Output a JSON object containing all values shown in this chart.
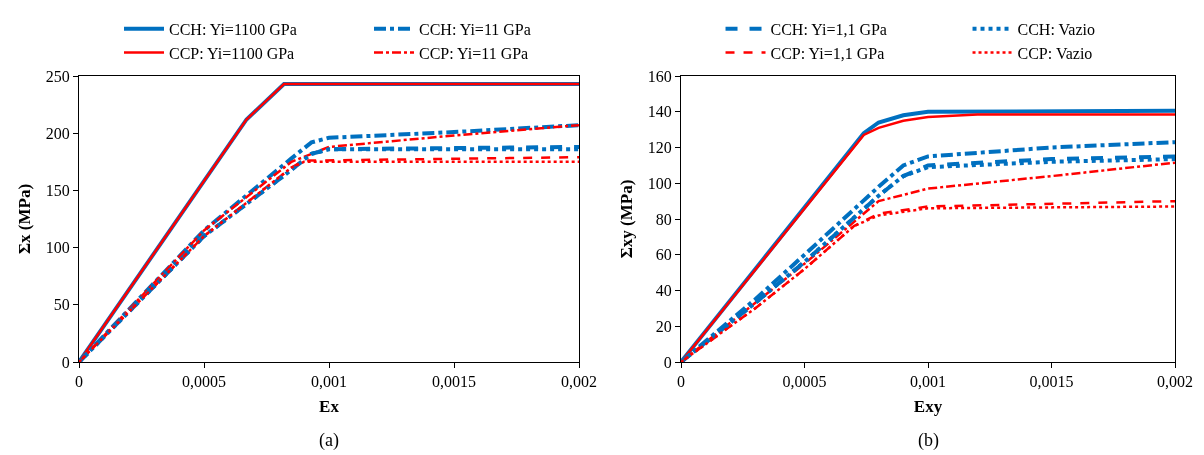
{
  "chart_data": [
    {
      "type": "line",
      "title": "(a)",
      "xlabel": "Ex",
      "ylabel": "Σx (MPa)",
      "legend": "top",
      "grid": false,
      "marker": "none",
      "xlim": [
        0,
        0.002
      ],
      "xticks": [
        0,
        {
          "value": 0.0005,
          "label": "0,0005"
        },
        {
          "value": 0.001,
          "label": "0,001"
        },
        {
          "value": 0.0015,
          "label": "0,0015"
        },
        {
          "value": 0.002,
          "label": "0,002"
        }
      ],
      "ylim": [
        0,
        250
      ],
      "yticks": [
        0,
        50,
        100,
        150,
        200,
        250
      ],
      "series": [
        {
          "name": "CCH: Yi=1100 GPa",
          "color": "#0070c0",
          "line_style": "solid",
          "x": [
            0,
            0.00067,
            0.00082,
            0.002
          ],
          "values": [
            0,
            212,
            243,
            243
          ]
        },
        {
          "name": "CCP: Yi=1100 GPa",
          "color": "#ff0000",
          "line_style": "solid",
          "x": [
            0,
            0.00067,
            0.00082,
            0.002
          ],
          "values": [
            0,
            212,
            243,
            243
          ]
        },
        {
          "name": "CCH: Yi=11 GPa",
          "color": "#0070c0",
          "line_style": "dashdot",
          "x": [
            0,
            0.0005,
            0.00085,
            0.00093,
            0.001,
            0.0015,
            0.002
          ],
          "values": [
            0,
            115,
            178,
            192,
            196,
            201,
            207
          ]
        },
        {
          "name": "CCP: Yi=11 GPa",
          "color": "#ff0000",
          "line_style": "dashdot",
          "x": [
            0,
            0.0005,
            0.00085,
            0.001,
            0.0015,
            0.002
          ],
          "values": [
            0,
            115,
            175,
            188,
            198,
            207
          ]
        },
        {
          "color": "#0070c0",
          "line_style": "dashed",
          "x": [
            0,
            0.0005,
            0.00085,
            0.00093,
            0.001,
            0.002
          ],
          "values": [
            0,
            110,
            168,
            182,
            186,
            188
          ]
        },
        {
          "color": "#ff0000",
          "line_style": "dashed",
          "x": [
            0,
            0.0005,
            0.00085,
            0.0009,
            0.002
          ],
          "values": [
            0,
            110,
            170,
            176,
            179
          ]
        },
        {
          "color": "#0070c0",
          "line_style": "dotted",
          "x": [
            0,
            0.0005,
            0.00085,
            0.00093,
            0.001,
            0.002
          ],
          "values": [
            0,
            110,
            168,
            182,
            186,
            186
          ]
        },
        {
          "color": "#ff0000",
          "line_style": "dotted",
          "x": [
            0,
            0.0005,
            0.00085,
            0.0009,
            0.002
          ],
          "values": [
            0,
            110,
            170,
            175,
            175
          ]
        }
      ]
    },
    {
      "type": "line",
      "title": "(b)",
      "xlabel": "Exy",
      "ylabel": "Σxy (MPa)",
      "legend": "top",
      "grid": false,
      "marker": "none",
      "xlim": [
        0,
        0.002
      ],
      "xticks": [
        0,
        {
          "value": 0.0005,
          "label": "0,0005"
        },
        {
          "value": 0.001,
          "label": "0,001"
        },
        {
          "value": 0.0015,
          "label": "0,0015"
        },
        {
          "value": 0.002,
          "label": "0,002"
        }
      ],
      "ylim": [
        0,
        160
      ],
      "yticks": [
        0,
        20,
        40,
        60,
        80,
        100,
        120,
        140,
        160
      ],
      "series": [
        {
          "color": "#0070c0",
          "line_style": "solid",
          "x": [
            0,
            0.00074,
            0.0008,
            0.0009,
            0.001,
            0.002
          ],
          "values": [
            0,
            128,
            134,
            138,
            140,
            140.5
          ]
        },
        {
          "color": "#ff0000",
          "line_style": "solid",
          "x": [
            0,
            0.00074,
            0.0008,
            0.0009,
            0.001,
            0.0012,
            0.002
          ],
          "values": [
            0,
            127,
            131,
            135,
            137,
            138.5,
            138.5
          ]
        },
        {
          "color": "#0070c0",
          "line_style": "dashdot",
          "x": [
            0,
            0.0003,
            0.0005,
            0.0008,
            0.0009,
            0.001,
            0.0015,
            0.002
          ],
          "values": [
            0,
            35,
            60,
            98,
            110,
            115,
            120,
            123
          ]
        },
        {
          "color": "#ff0000",
          "line_style": "dashdot",
          "x": [
            0,
            0.0003,
            0.0005,
            0.0008,
            0.001,
            0.0015,
            0.002
          ],
          "values": [
            0,
            33,
            55,
            90,
            97,
            104,
            111.5
          ]
        },
        {
          "name": "CCH: Yi=1,1 GPa",
          "color": "#0070c0",
          "line_style": "dashed",
          "x": [
            0,
            0.0003,
            0.0005,
            0.0008,
            0.0009,
            0.001,
            0.0015,
            0.002
          ],
          "values": [
            0,
            33,
            56,
            93,
            104,
            110,
            113.5,
            115
          ]
        },
        {
          "name": "CCP: Yi=1,1 GPa",
          "color": "#ff0000",
          "line_style": "dashed",
          "x": [
            0,
            0.0003,
            0.0005,
            0.0007,
            0.0008,
            0.001,
            0.002
          ],
          "values": [
            0,
            30,
            52,
            76,
            83,
            87,
            90
          ]
        },
        {
          "name": "CCH: Vazio",
          "color": "#0070c0",
          "line_style": "dotted",
          "x": [
            0,
            0.0003,
            0.0005,
            0.0008,
            0.0009,
            0.001,
            0.0015,
            0.002
          ],
          "values": [
            0,
            33,
            56,
            93,
            104,
            109,
            112,
            113.5
          ]
        },
        {
          "name": "CCP: Vazio",
          "color": "#ff0000",
          "line_style": "dotted",
          "x": [
            0,
            0.0003,
            0.0005,
            0.0007,
            0.0008,
            0.001,
            0.002
          ],
          "values": [
            0,
            30,
            52,
            76,
            82,
            86,
            87
          ]
        }
      ]
    }
  ]
}
